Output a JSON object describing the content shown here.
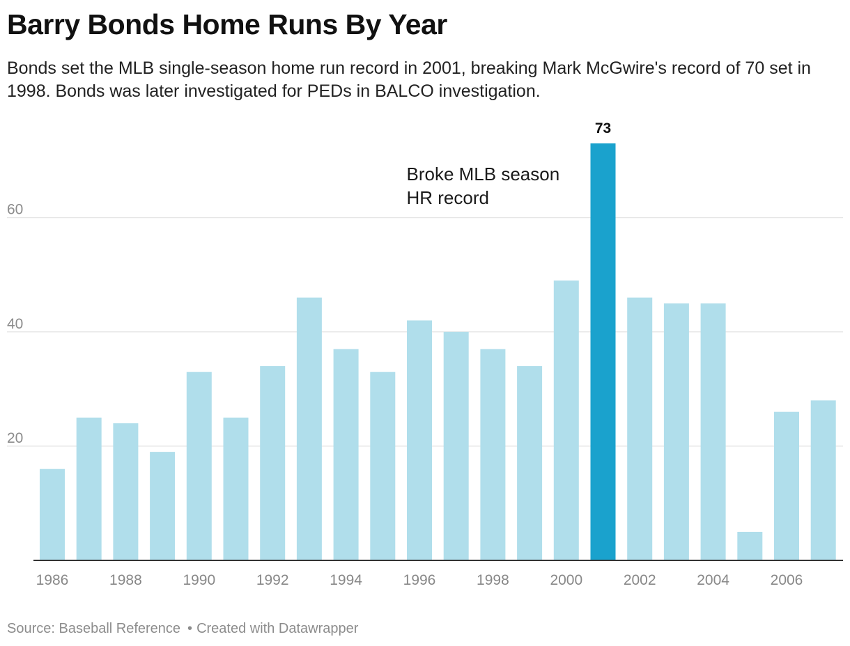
{
  "header": {
    "title": "Barry Bonds Home Runs By Year",
    "subtitle": "Bonds set the MLB single-season home run record in 2001, breaking Mark McGwire's record of 70 set in 1998. Bonds was later investigated for PEDs in BALCO investigation."
  },
  "chart_data": {
    "type": "bar",
    "title": "Barry Bonds Home Runs By Year",
    "subtitle": "Bonds set the MLB single-season home run record in 2001, breaking Mark McGwire's record of 70 set in 1998. Bonds was later investigated for PEDs in BALCO investigation.",
    "xlabel": "",
    "ylabel": "",
    "categories": [
      "1986",
      "1987",
      "1988",
      "1989",
      "1990",
      "1991",
      "1992",
      "1993",
      "1994",
      "1995",
      "1996",
      "1997",
      "1998",
      "1999",
      "2000",
      "2001",
      "2002",
      "2003",
      "2004",
      "2005",
      "2006",
      "2007"
    ],
    "values": [
      16,
      25,
      24,
      19,
      33,
      25,
      34,
      46,
      37,
      33,
      42,
      40,
      37,
      34,
      49,
      73,
      46,
      45,
      45,
      5,
      26,
      28
    ],
    "x_tick_labels": [
      "1986",
      "1988",
      "1990",
      "1992",
      "1994",
      "1996",
      "1998",
      "2000",
      "2002",
      "2004",
      "2006"
    ],
    "y_ticks": [
      "20",
      "40",
      "60"
    ],
    "ylim": [
      0,
      73
    ],
    "grid": true,
    "highlight": {
      "category": "2001",
      "value_label": "73"
    },
    "annotation": {
      "lines": [
        "Broke MLB season",
        "HR record"
      ]
    },
    "colors": {
      "bar": "#b0deeb",
      "highlight": "#1aa2cd",
      "grid": "#e3e3e3",
      "axis": "#333333",
      "tick_text": "#8c8c8c"
    }
  },
  "footer": {
    "source": "Source: Baseball Reference",
    "credit": "Created with Datawrapper",
    "separator": "•"
  }
}
